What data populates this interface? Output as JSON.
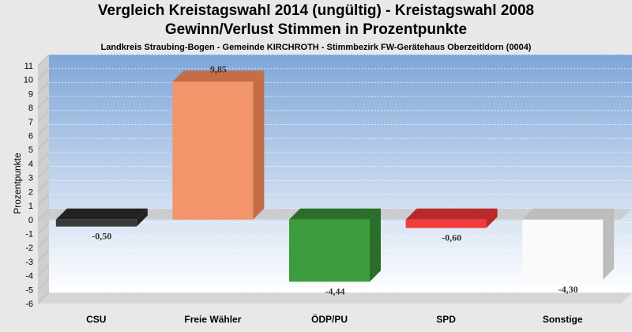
{
  "chart_data": {
    "type": "bar",
    "title": "Vergleich Kreistagswahl 2014 (ungültig) - Kreistagswahl 2008",
    "subtitle": "Gewinn/Verlust Stimmen in Prozentpunkte",
    "subtitle2": "Landkreis Straubing-Bogen - Gemeinde KIRCHROTH - Stimmbezirk FW-Gerätehaus Oberzeitldorn (0004)",
    "xlabel": "",
    "ylabel": "Prozentpunkte",
    "ylim": [
      -6,
      11
    ],
    "ticks": [
      11,
      10,
      9,
      8,
      7,
      6,
      5,
      4,
      3,
      2,
      1,
      0,
      -1,
      -2,
      -3,
      -4,
      -5,
      -6
    ],
    "categories": [
      "CSU",
      "Freie Wähler",
      "ÖDP/PU",
      "SPD",
      "Sonstige"
    ],
    "values": [
      -0.5,
      9.85,
      -4.44,
      -0.6,
      -4.3
    ],
    "value_labels": [
      "-0,50",
      "9,85",
      "-4,44",
      "-0,60",
      "-4,30"
    ],
    "colors": [
      "#3a3a3a",
      "#f2956a",
      "#3c9b3c",
      "#f23c3c",
      "#fafafa"
    ],
    "side_colors": [
      "#222222",
      "#c46e48",
      "#2a6e2a",
      "#b82a2a",
      "#bdbdbd"
    ],
    "grid": true,
    "legend": "none"
  }
}
